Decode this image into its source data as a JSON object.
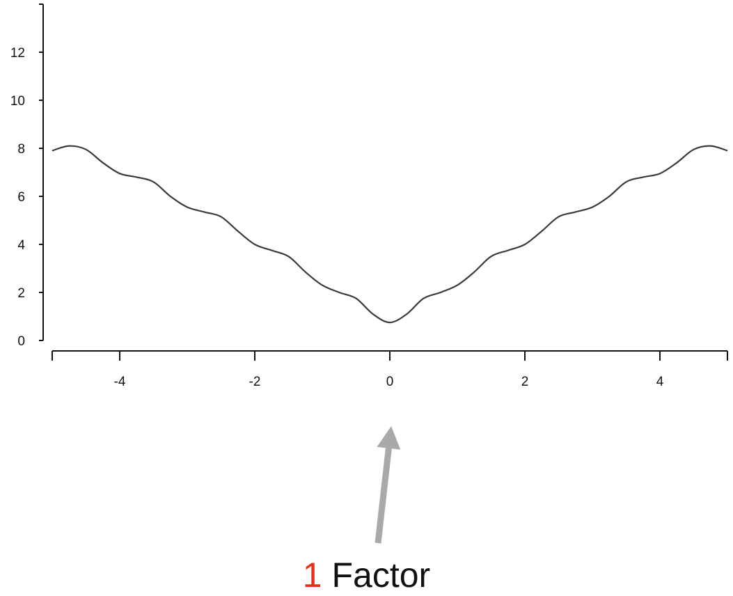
{
  "chart_data": {
    "type": "line",
    "title": "",
    "xlabel": "",
    "ylabel": "",
    "xlim": [
      -5,
      5
    ],
    "ylim": [
      0,
      14
    ],
    "x_ticks": [
      -4,
      -2,
      0,
      2,
      4
    ],
    "y_ticks": [
      0,
      2,
      4,
      6,
      8,
      10,
      12
    ],
    "grid": false,
    "series": [
      {
        "x": [
          -5.0,
          -4.75,
          -4.5,
          -4.25,
          -4.0,
          -3.75,
          -3.5,
          -3.25,
          -3.0,
          -2.75,
          -2.5,
          -2.25,
          -2.0,
          -1.75,
          -1.5,
          -1.25,
          -1.0,
          -0.75,
          -0.5,
          -0.25,
          0.0,
          0.25,
          0.5,
          0.75,
          1.0,
          1.25,
          1.5,
          1.75,
          2.0,
          2.25,
          2.5,
          2.75,
          3.0,
          3.25,
          3.5,
          3.75,
          4.0,
          4.25,
          4.5,
          4.75,
          5.0
        ],
        "y": [
          7.9,
          8.1,
          7.95,
          7.4,
          6.95,
          6.8,
          6.6,
          6.0,
          5.55,
          5.35,
          5.15,
          4.55,
          4.0,
          3.75,
          3.5,
          2.85,
          2.3,
          2.0,
          1.75,
          1.1,
          0.75,
          1.1,
          1.75,
          2.0,
          2.3,
          2.85,
          3.5,
          3.75,
          4.0,
          4.55,
          5.15,
          5.35,
          5.55,
          6.0,
          6.6,
          6.8,
          6.95,
          7.4,
          7.95,
          8.1,
          7.9
        ]
      }
    ],
    "annotation": {
      "type": "arrow",
      "points_to_x": 0
    },
    "colors": {
      "line": "#3a3a3a",
      "axis": "#111111",
      "arrow": "#a9a9a9",
      "caption_number": "#e0301e"
    }
  },
  "caption": {
    "number": "1",
    "text": "Factor"
  }
}
